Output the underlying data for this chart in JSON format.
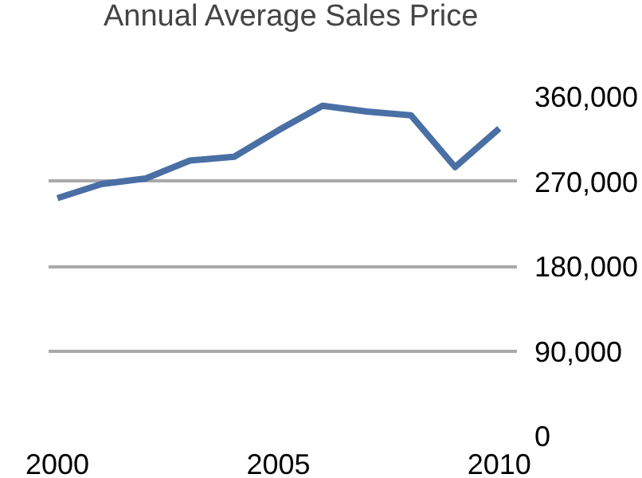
{
  "chart_data": {
    "type": "line",
    "x": [
      2000,
      2001,
      2002,
      2003,
      2004,
      2005,
      2006,
      2007,
      2008,
      2009,
      2010
    ],
    "series": [
      {
        "name": "Annual Average Sales Price",
        "color": "#4a6fa5",
        "values": [
          252000,
          267000,
          273000,
          292000,
          296000,
          324000,
          350000,
          344000,
          340000,
          285000,
          326000
        ]
      }
    ],
    "xlim": [
      1999.8,
      2010.4
    ],
    "xticks": [
      2000,
      2005,
      2010
    ],
    "ylim": [
      0,
      360000
    ],
    "yticks": [
      {
        "value": 0,
        "label": "0"
      },
      {
        "value": 90000,
        "label": "90,000"
      },
      {
        "value": 180000,
        "label": "180,000"
      },
      {
        "value": 270000,
        "label": "270,000"
      },
      {
        "value": 360000,
        "label": "360,000"
      }
    ],
    "grid": "y",
    "legend": "top",
    "line_style": "solid",
    "marker": "none"
  }
}
